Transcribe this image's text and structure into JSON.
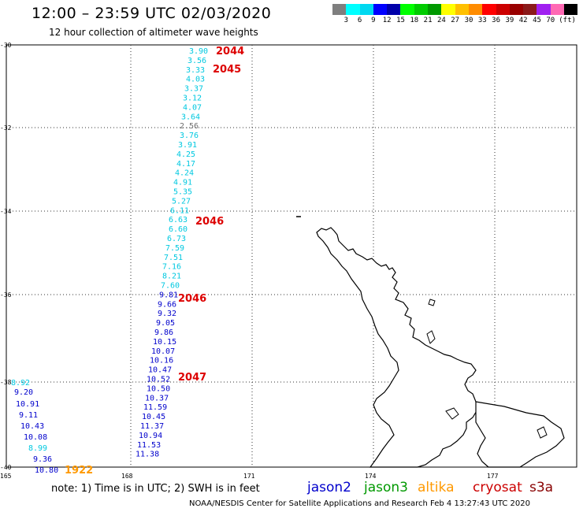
{
  "header": {
    "title": "12:00 – 23:59 UTC 02/03/2020",
    "subtitle": "12 hour collection of altimeter wave heights"
  },
  "legend": {
    "colors": [
      "#7f7f7f",
      "#00ffff",
      "#00d8f0",
      "#0000ff",
      "#0000aa",
      "#00ff00",
      "#00cc00",
      "#009900",
      "#ffff00",
      "#ffc000",
      "#ff8c00",
      "#ff0000",
      "#cc0000",
      "#990000",
      "#8b1a1a",
      "#a020f0",
      "#ff69b4",
      "#000000"
    ],
    "labels": [
      "3",
      "6",
      "9",
      "12",
      "15",
      "18",
      "21",
      "24",
      "27",
      "30",
      "33",
      "36",
      "39",
      "42",
      "45",
      "70",
      "(ft)"
    ]
  },
  "axes": {
    "lat_labels": [
      "-30",
      "-32",
      "-34",
      "-36",
      "-38",
      "-40"
    ],
    "lon_labels": [
      "165",
      "168",
      "171",
      "174",
      "177"
    ]
  },
  "track_times": [
    {
      "text": "2044",
      "color": "#dd0000"
    },
    {
      "text": "2045",
      "color": "#dd0000"
    },
    {
      "text": "2046",
      "color": "#dd0000"
    },
    {
      "text": "2046",
      "color": "#dd0000"
    },
    {
      "text": "2047",
      "color": "#dd0000"
    },
    {
      "text": "1922",
      "color": "#ff9900"
    }
  ],
  "swh_values": {
    "track_east": [
      "3.90",
      "3.56",
      "3.33",
      "4.03",
      "3.37",
      "3.12",
      "4.07",
      "3.64",
      "2.56",
      "3.76",
      "3.91",
      "4.25",
      "4.17",
      "4.24",
      "4.91",
      "5.35",
      "5.27",
      "6.11",
      "6.63",
      "6.60",
      "6.73",
      "7.59",
      "7.51",
      "7.16",
      "8.21",
      "7.60",
      "9.81",
      "9.66",
      "9.32",
      "9.05",
      "9.86",
      "10.15",
      "10.07",
      "10.16",
      "10.47",
      "10.52",
      "10.50",
      "10.37",
      "11.59",
      "10.45",
      "11.37",
      "10.94",
      "11.53",
      "11.38"
    ],
    "track_west": [
      "8.92",
      "9.20",
      "10.91",
      "9.11",
      "10.43",
      "10.08",
      "8.99",
      "9.36",
      "10.80"
    ]
  },
  "note": "note:  1) Time is in UTC;  2) SWH is in feet",
  "satellites": [
    {
      "name": "jason2",
      "color": "#0000cc"
    },
    {
      "name": "jason3",
      "color": "#009900"
    },
    {
      "name": "altika",
      "color": "#ff9900"
    },
    {
      "name": "cryosat",
      "color": "#cc0000"
    },
    {
      "name": "s3a",
      "color": "#880000"
    }
  ],
  "credit": "NOAA/NESDIS Center for Satellite Applications and Research   Feb  4 13:27:43 UTC 2020"
}
